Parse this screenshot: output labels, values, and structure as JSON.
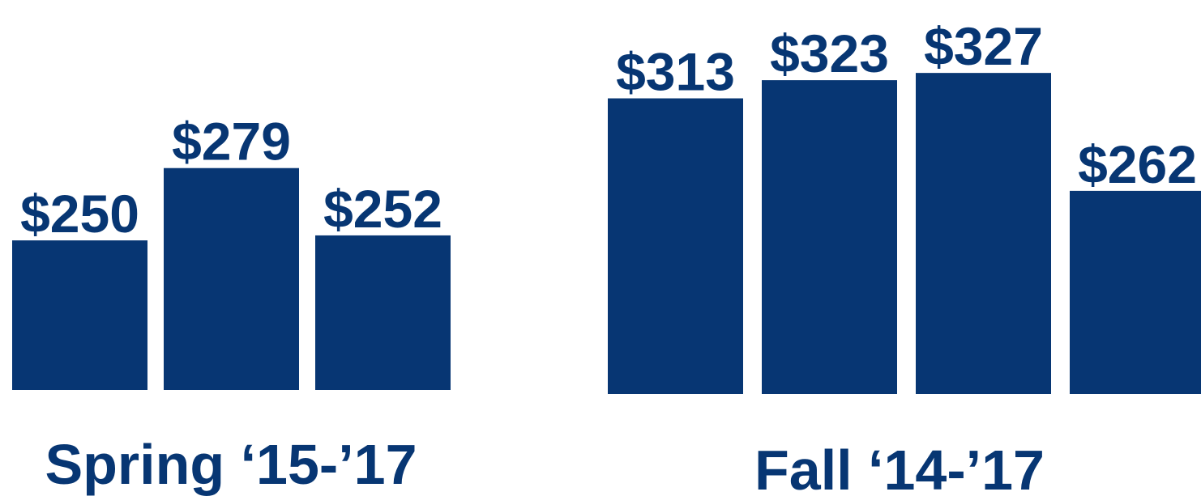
{
  "chart_data": [
    {
      "type": "bar",
      "title": "Spring ‘15-’17",
      "categories": [
        null,
        null,
        null
      ],
      "values": [
        250,
        279,
        252
      ],
      "value_labels": [
        "$250",
        "$279",
        "$252"
      ],
      "color": "#073673",
      "ylim": [
        190,
        300
      ]
    },
    {
      "type": "bar",
      "title": "Fall ‘14-’17",
      "categories": [
        null,
        null,
        null,
        null
      ],
      "values": [
        313,
        323,
        327,
        262
      ],
      "value_labels": [
        "$313",
        "$323",
        "$327",
        "$262"
      ],
      "color": "#073673",
      "ylim": [
        150,
        340
      ]
    }
  ]
}
